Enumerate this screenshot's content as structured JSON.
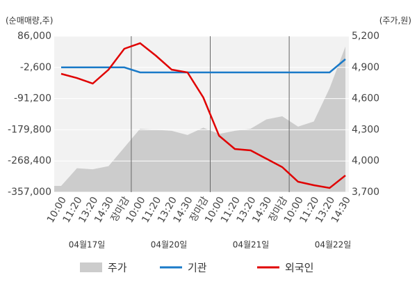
{
  "chart_data": {
    "type": "line",
    "y_label": "(순매매량,주)",
    "y2_label": "(주가,원)",
    "categories": [
      "10:00",
      "11:20",
      "13:20",
      "14:30",
      "장마감",
      "10:00",
      "11:20",
      "13:20",
      "14:30",
      "장마감",
      "10:00",
      "11:20",
      "13:20",
      "14:30",
      "장마감",
      "10:00",
      "11:20",
      "13:20",
      "14:30"
    ],
    "day_labels": [
      "04월17일",
      "04월20일",
      "04월21일",
      "04월22일"
    ],
    "dividers": [
      4,
      9,
      14
    ],
    "divider_color": "#e00000",
    "ylim": [
      -357000,
      86000
    ],
    "yticks": [
      {
        "value": 86000,
        "label": "86,000"
      },
      {
        "value": -2600,
        "label": "-2,600"
      },
      {
        "value": -91200,
        "label": "-91,200"
      },
      {
        "value": -179800,
        "label": "-179,800"
      },
      {
        "value": -268400,
        "label": "-268,400"
      },
      {
        "value": -357000,
        "label": "-357,000"
      }
    ],
    "y2lim": [
      3700,
      5200
    ],
    "y2ticks": [
      {
        "value": 5200,
        "label": "5,200"
      },
      {
        "value": 4900,
        "label": "4,900"
      },
      {
        "value": 4600,
        "label": "4,600"
      },
      {
        "value": 4300,
        "label": "4,300"
      },
      {
        "value": 4000,
        "label": "4,000"
      },
      {
        "value": 3700,
        "label": "3,700"
      }
    ],
    "grid": true,
    "series": [
      {
        "name": "주가",
        "color": "#cccccc",
        "axis": "y2",
        "kind": "area",
        "values": [
          3760,
          3930,
          3920,
          3950,
          4130,
          4310,
          4300,
          4290,
          4250,
          4320,
          4260,
          4290,
          4310,
          4400,
          4430,
          4330,
          4380,
          4700,
          5100
        ]
      },
      {
        "name": "기관",
        "color": "#1a7ac8",
        "kind": "line",
        "values": [
          -2600,
          -2600,
          -2600,
          -2600,
          -2600,
          -16800,
          -16800,
          -16800,
          -16800,
          -16800,
          -16800,
          -16800,
          -16800,
          -16800,
          -16800,
          -16800,
          -16800,
          -16800,
          20700
        ]
      },
      {
        "name": "외국인",
        "color": "#e00000",
        "kind": "line",
        "values": [
          -20800,
          -32700,
          -48500,
          -9000,
          50400,
          66200,
          30600,
          -9000,
          -16800,
          -88000,
          -196800,
          -234400,
          -238300,
          -262100,
          -285800,
          -327300,
          -337200,
          -345100,
          -309500
        ]
      }
    ]
  }
}
